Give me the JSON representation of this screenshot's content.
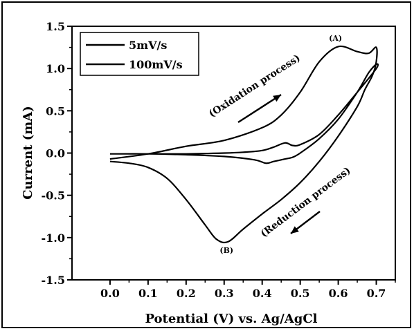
{
  "chart_data": {
    "type": "line",
    "xlabel": "Potential (V)  vs. Ag/AgCl",
    "ylabel": "Current (mA)",
    "xlim": [
      -0.1,
      0.75
    ],
    "ylim": [
      -1.5,
      1.5
    ],
    "xticks": [
      "0.0",
      "0.1",
      "0.2",
      "0.3",
      "0.4",
      "0.5",
      "0.6",
      "0.7"
    ],
    "yticks": [
      "1.5",
      "1.0",
      "0.5",
      "0.0",
      "-0.5",
      "-1.0",
      "-1.5"
    ],
    "legend_position": "top-left",
    "series": [
      {
        "name": "5mV/s",
        "x": [
          0.0,
          0.1,
          0.2,
          0.3,
          0.35,
          0.4,
          0.43,
          0.46,
          0.48,
          0.5,
          0.55,
          0.6,
          0.65,
          0.7,
          0.7,
          0.68,
          0.65,
          0.6,
          0.55,
          0.5,
          0.48,
          0.46,
          0.43,
          0.41,
          0.38,
          0.3,
          0.2,
          0.1,
          0.0
        ],
        "y": [
          -0.01,
          -0.01,
          -0.01,
          0.0,
          0.01,
          0.03,
          0.07,
          0.12,
          0.09,
          0.1,
          0.22,
          0.45,
          0.72,
          1.0,
          1.05,
          0.95,
          0.72,
          0.4,
          0.17,
          0.0,
          -0.05,
          -0.07,
          -0.1,
          -0.12,
          -0.08,
          -0.04,
          -0.02,
          -0.01,
          -0.01
        ]
      },
      {
        "name": "100mV/s",
        "x": [
          0.0,
          0.1,
          0.2,
          0.3,
          0.4,
          0.45,
          0.5,
          0.55,
          0.6,
          0.65,
          0.68,
          0.7,
          0.7,
          0.69,
          0.67,
          0.65,
          0.6,
          0.55,
          0.5,
          0.45,
          0.4,
          0.35,
          0.31,
          0.28,
          0.25,
          0.2,
          0.15,
          0.1,
          0.05,
          0.0
        ],
        "y": [
          -0.07,
          -0.01,
          0.08,
          0.15,
          0.3,
          0.45,
          0.72,
          1.08,
          1.26,
          1.2,
          1.18,
          1.25,
          1.08,
          0.92,
          0.75,
          0.55,
          0.2,
          -0.1,
          -0.35,
          -0.55,
          -0.72,
          -0.9,
          -1.05,
          -1.02,
          -0.85,
          -0.55,
          -0.3,
          -0.17,
          -0.12,
          -0.1
        ]
      }
    ],
    "annotations": [
      {
        "text": "(A)",
        "x": 0.6,
        "y": 1.33
      },
      {
        "text": "(B)",
        "x": 0.31,
        "y": -1.18
      },
      {
        "text": "(Oxidation process)"
      },
      {
        "text": "(Reduction process)"
      }
    ]
  }
}
